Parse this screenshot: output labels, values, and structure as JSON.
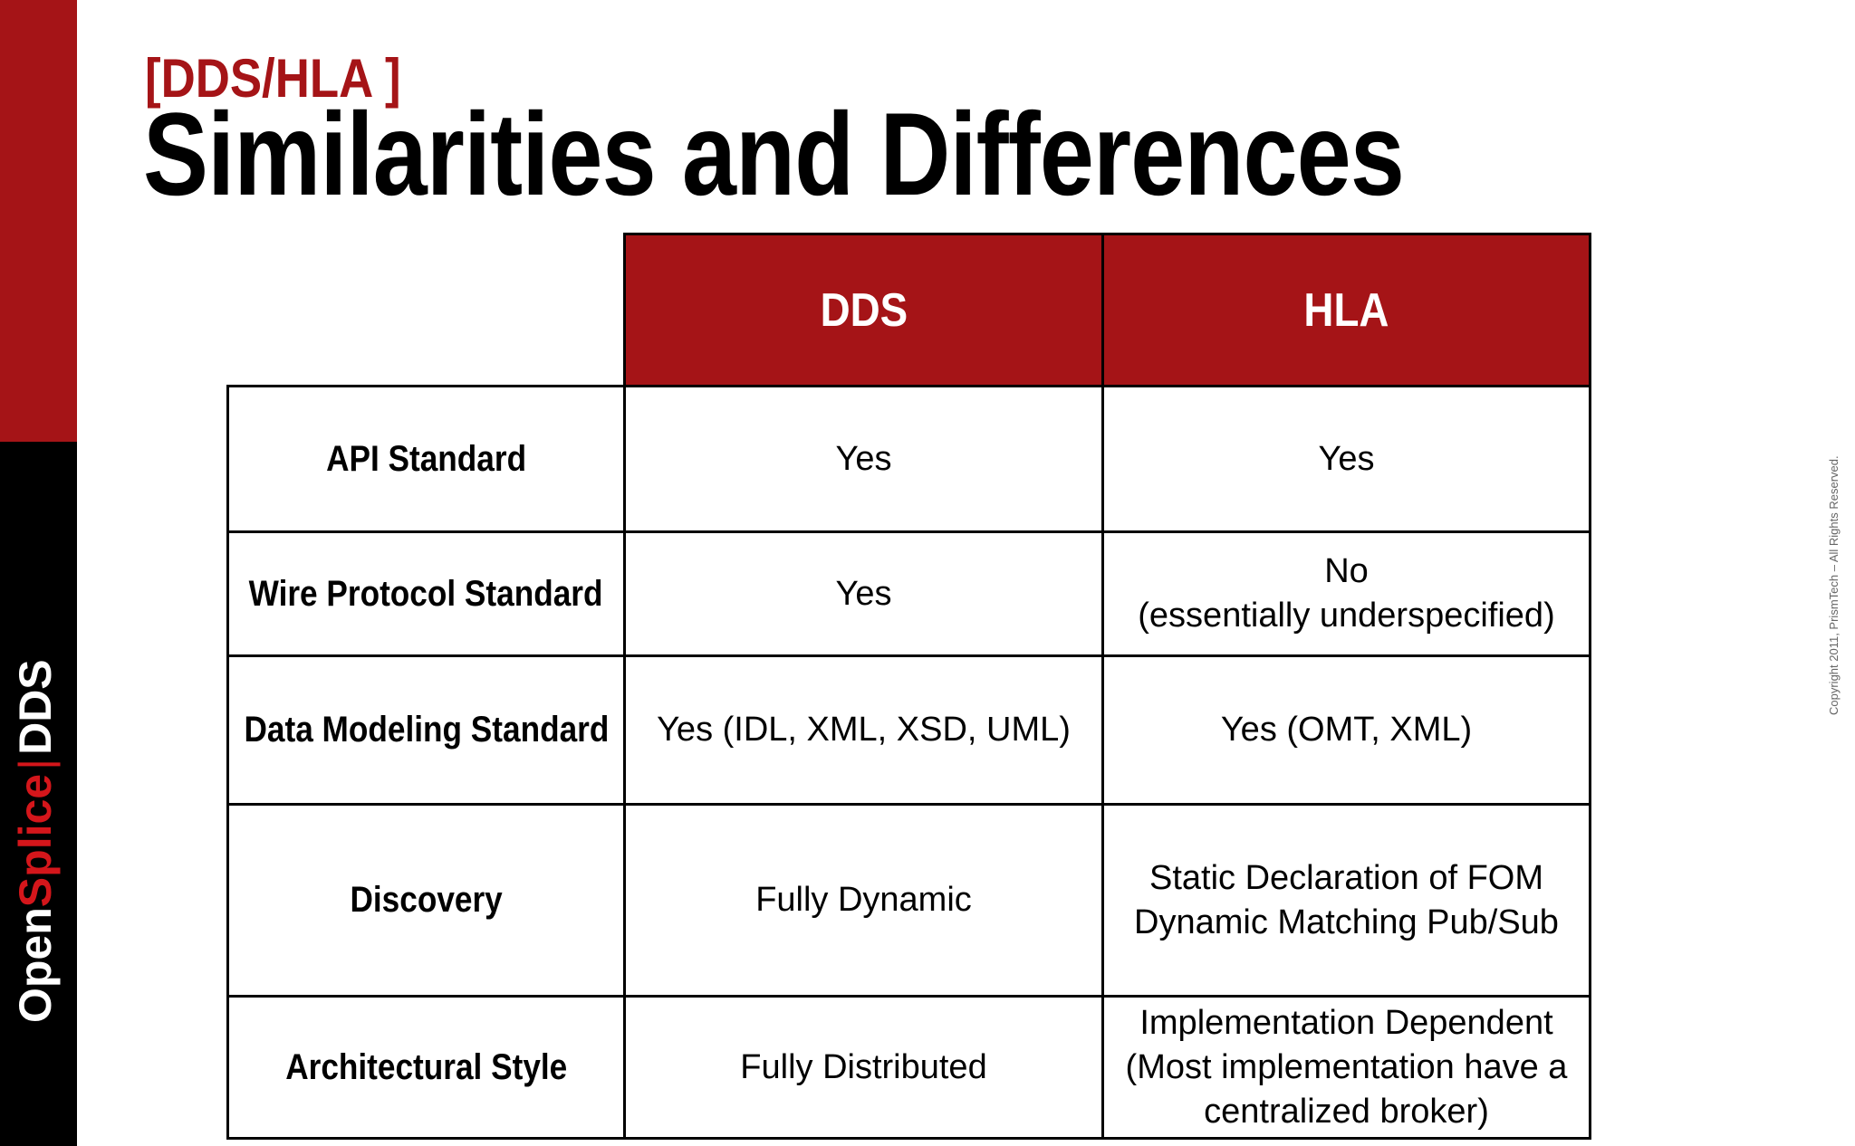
{
  "brand": {
    "open": "Open",
    "splice": "Splice",
    "separator": "|",
    "dds": "DDS"
  },
  "header": {
    "subtitle": "[DDS/HLA ]",
    "title": "Similarities and Differences"
  },
  "table": {
    "columns": [
      "DDS",
      "HLA"
    ],
    "rows": [
      {
        "label": "API Standard",
        "dds": "Yes",
        "hla": "Yes"
      },
      {
        "label": "Wire Protocol Standard",
        "dds": "Yes",
        "hla": "No\n(essentially underspecified)"
      },
      {
        "label": "Data Modeling Standard",
        "dds": "Yes (IDL, XML, XSD, UML)",
        "hla": "Yes (OMT, XML)"
      },
      {
        "label": "Discovery",
        "dds": "Fully Dynamic",
        "hla": "Static Declaration of FOM\nDynamic Matching Pub/Sub"
      },
      {
        "label": "Architectural Style",
        "dds": "Fully Distributed",
        "hla": "Implementation Dependent\n(Most implementation have a\ncentralized broker)"
      }
    ]
  },
  "copyright": "Copyright 2011, PrismTech – All Rights Reserved.",
  "colors": {
    "accent_red": "#a51417",
    "sidebar_black": "#000000"
  }
}
